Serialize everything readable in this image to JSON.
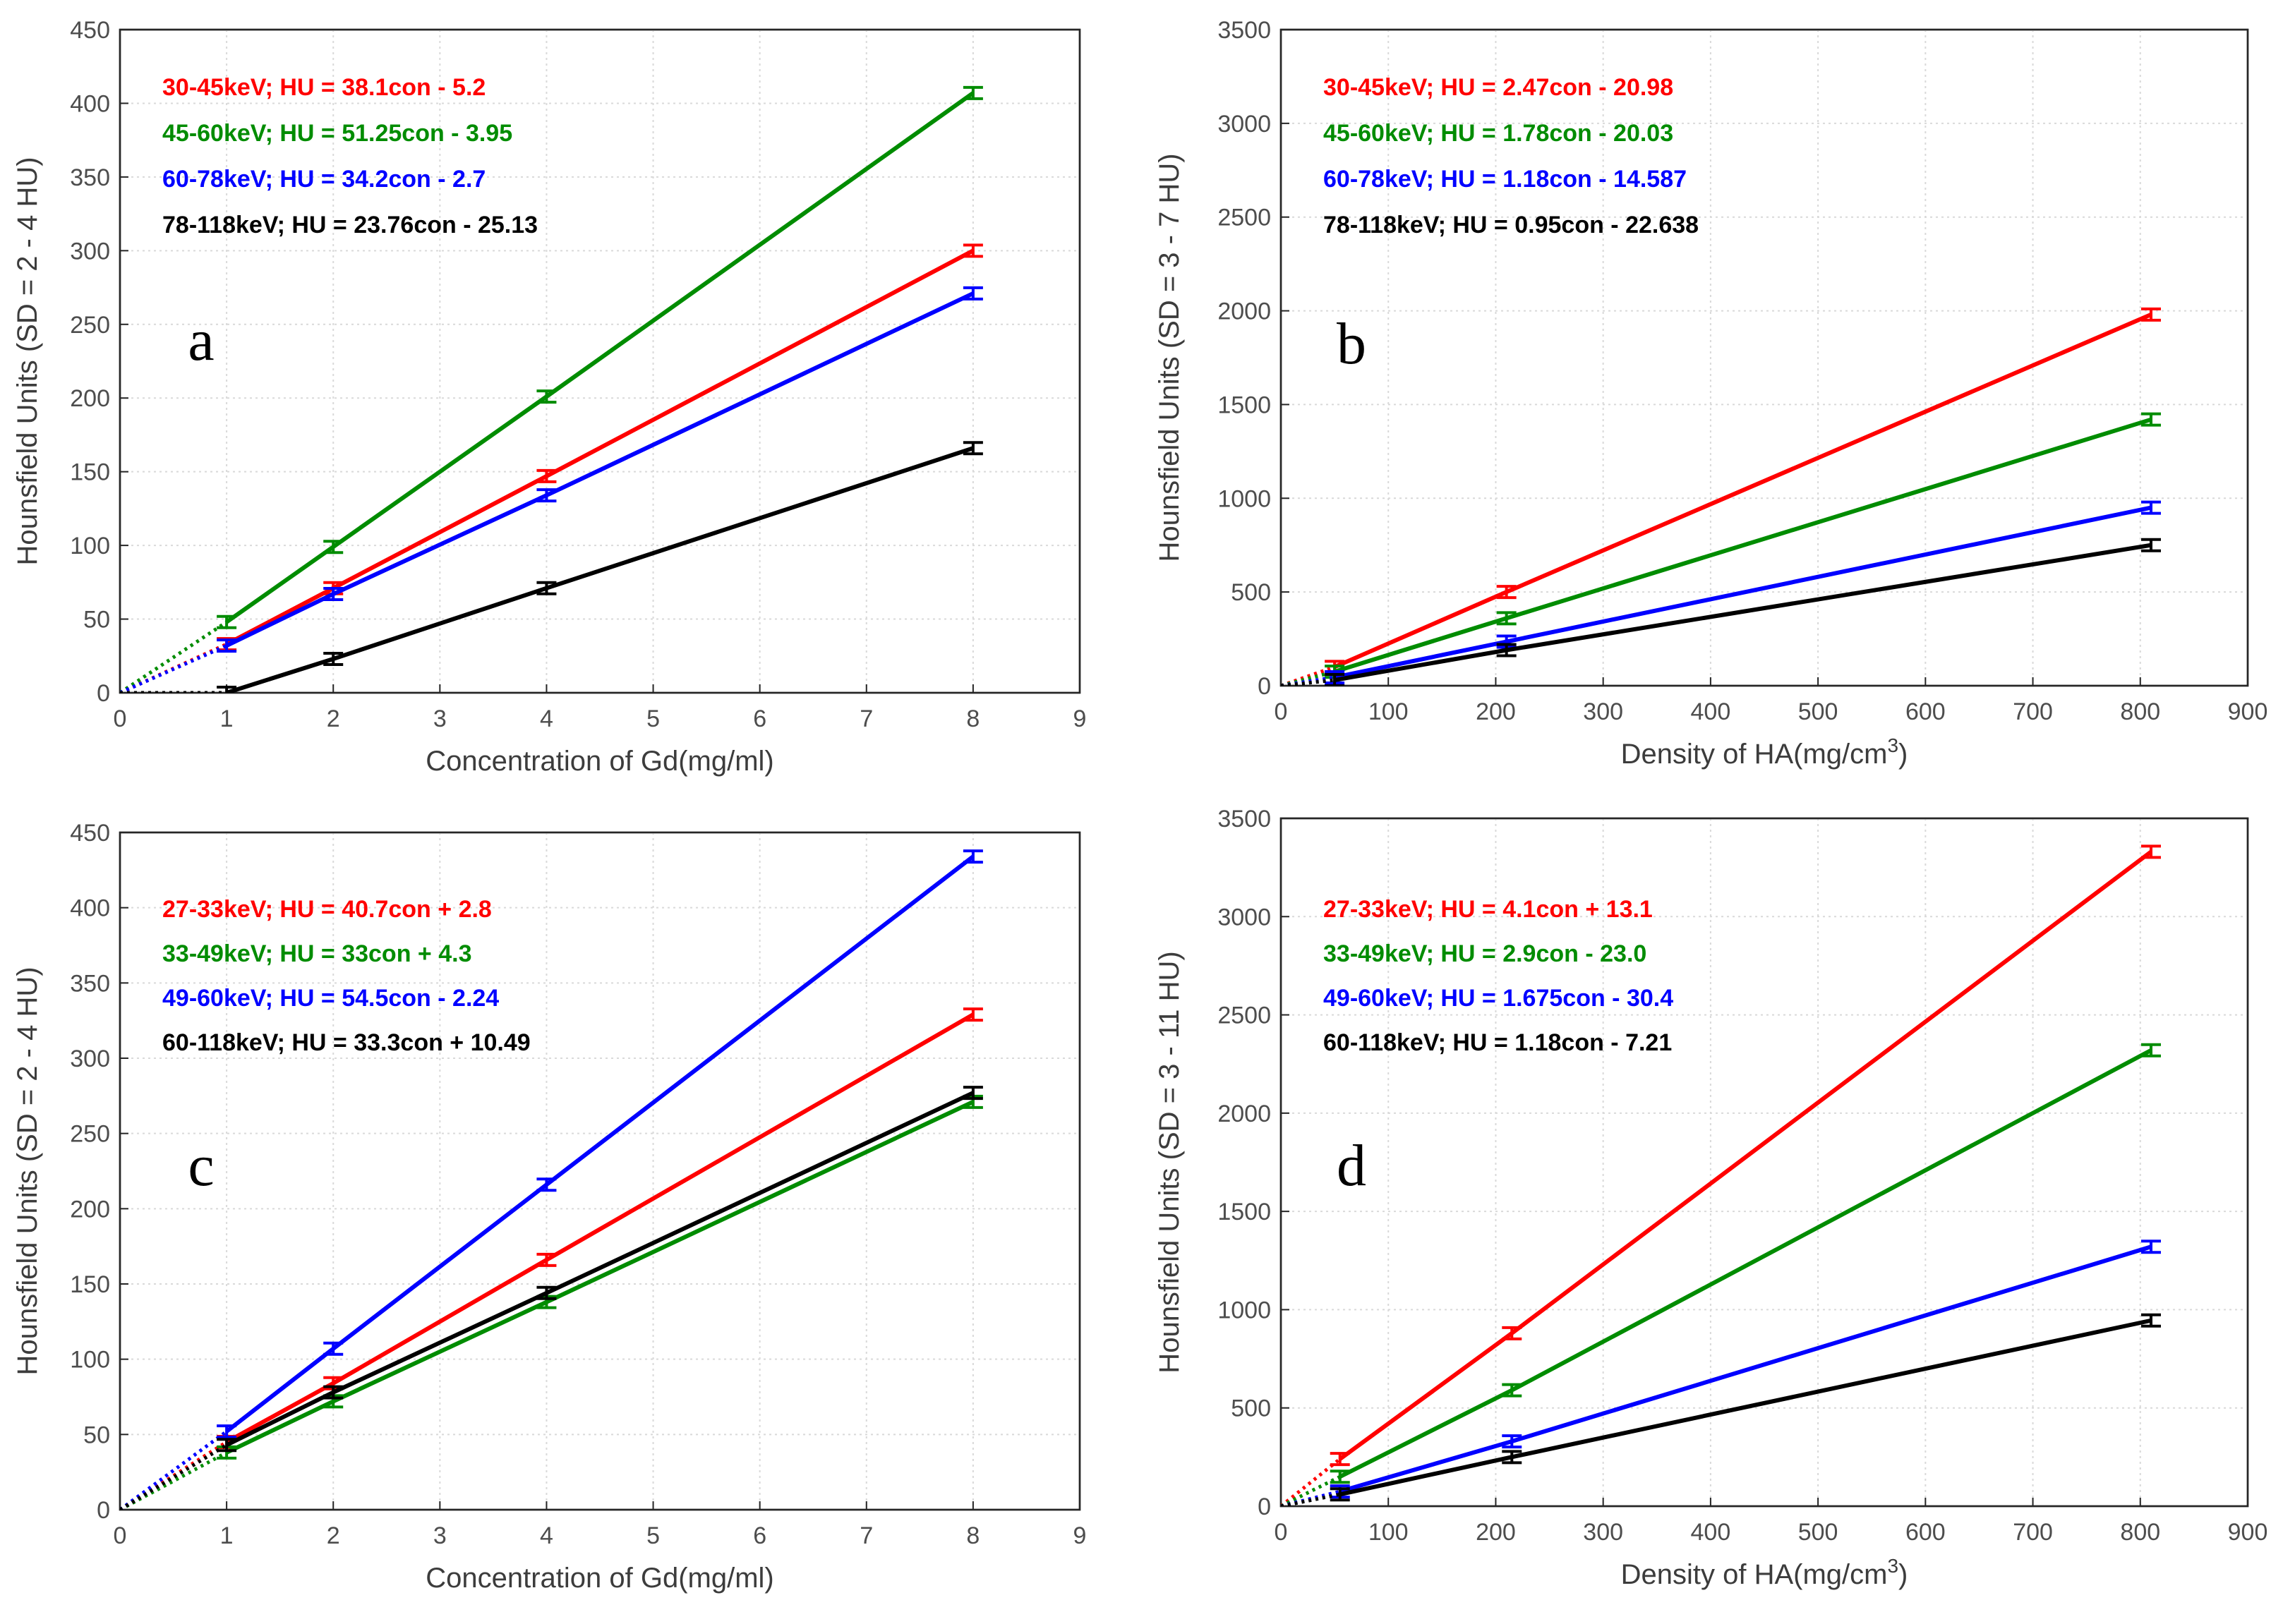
{
  "chart_data": [
    {
      "type": "line",
      "panel_label": "a",
      "xlabel": "Concentration of Gd(mg/ml)",
      "ylabel": "Hounsfield Units (SD = 2 - 4 HU)",
      "xlim": [
        0,
        9
      ],
      "ylim": [
        0,
        450
      ],
      "xticks": [
        "0",
        "1",
        "2",
        "3",
        "4",
        "5",
        "6",
        "7",
        "8",
        "9"
      ],
      "yticks": [
        "0",
        "50",
        "100",
        "150",
        "200",
        "250",
        "300",
        "350",
        "400",
        "450"
      ],
      "x": [
        1,
        2,
        4,
        8
      ],
      "series": [
        {
          "name": "30-45keV",
          "color": "#ff0000",
          "equation": "30-45keV; HU = 38.1con - 5.2",
          "values": [
            33,
            71,
            147,
            300
          ]
        },
        {
          "name": "45-60keV",
          "color": "#008c00",
          "equation": "45-60keV; HU = 51.25con - 3.95",
          "values": [
            48,
            99,
            201,
            407
          ]
        },
        {
          "name": "60-78keV",
          "color": "#0000ff",
          "equation": "60-78keV; HU = 34.2con - 2.7",
          "values": [
            32,
            67,
            134,
            271
          ]
        },
        {
          "name": "78-118keV",
          "color": "#000000",
          "equation": "78-118keV; HU = 23.76con - 25.13",
          "values": [
            0,
            23,
            71,
            166
          ]
        }
      ]
    },
    {
      "type": "line",
      "panel_label": "b",
      "xlabel": "Density of HA(mg/cm",
      "xlabel_sup": "3",
      "xlabel_end": ")",
      "ylabel": "Hounsfield Units (SD = 3 - 7 HU)",
      "xlim": [
        0,
        900
      ],
      "ylim": [
        0,
        3500
      ],
      "xticks": [
        "0",
        "100",
        "200",
        "300",
        "400",
        "500",
        "600",
        "700",
        "800",
        "900"
      ],
      "yticks": [
        "0",
        "500",
        "1000",
        "1500",
        "2000",
        "2500",
        "3000",
        "3500"
      ],
      "x": [
        50,
        210,
        810
      ],
      "series": [
        {
          "name": "30-45keV",
          "color": "#ff0000",
          "equation": "30-45keV; HU = 2.47con - 20.98",
          "values": [
            100,
            500,
            1980
          ]
        },
        {
          "name": "45-60keV",
          "color": "#008c00",
          "equation": "45-60keV; HU = 1.78con - 20.03",
          "values": [
            75,
            360,
            1420
          ]
        },
        {
          "name": "60-78keV",
          "color": "#0000ff",
          "equation": "60-78keV; HU = 1.18con - 14.587",
          "values": [
            45,
            235,
            950
          ]
        },
        {
          "name": "78-118keV",
          "color": "#000000",
          "equation": "78-118keV; HU = 0.95con - 22.638",
          "values": [
            30,
            190,
            750
          ]
        }
      ]
    },
    {
      "type": "line",
      "panel_label": "c",
      "xlabel": "Concentration of Gd(mg/ml)",
      "ylabel": "Hounsfield Units (SD = 2 - 4 HU)",
      "xlim": [
        0,
        9
      ],
      "ylim": [
        0,
        450
      ],
      "xticks": [
        "0",
        "1",
        "2",
        "3",
        "4",
        "5",
        "6",
        "7",
        "8",
        "9"
      ],
      "yticks": [
        "0",
        "50",
        "100",
        "150",
        "200",
        "250",
        "300",
        "350",
        "400",
        "450"
      ],
      "x": [
        1,
        2,
        4,
        8
      ],
      "series": [
        {
          "name": "27-33keV",
          "color": "#ff0000",
          "equation": "27-33keV; HU = 40.7con + 2.8",
          "values": [
            45,
            84,
            166,
            329
          ]
        },
        {
          "name": "33-49keV",
          "color": "#008c00",
          "equation": "33-49keV; HU = 33con + 4.3",
          "values": [
            38,
            72,
            138,
            271
          ]
        },
        {
          "name": "49-60keV",
          "color": "#0000ff",
          "equation": "49-60keV; HU = 54.5con - 2.24",
          "values": [
            52,
            107,
            216,
            434
          ]
        },
        {
          "name": "60-118keV",
          "color": "#000000",
          "equation": "60-118keV; HU = 33.3con + 10.49",
          "values": [
            43,
            78,
            144,
            277
          ]
        }
      ]
    },
    {
      "type": "line",
      "panel_label": "d",
      "xlabel": "Density of HA(mg/cm",
      "xlabel_sup": "3",
      "xlabel_end": ")",
      "ylabel": "Hounsfield Units (SD = 3 - 11 HU)",
      "xlim": [
        0,
        900
      ],
      "ylim": [
        0,
        3500
      ],
      "xticks": [
        "0",
        "100",
        "200",
        "300",
        "400",
        "500",
        "600",
        "700",
        "800",
        "900"
      ],
      "yticks": [
        "0",
        "500",
        "1000",
        "1500",
        "2000",
        "2500",
        "3000",
        "3500"
      ],
      "x": [
        55,
        215,
        810
      ],
      "series": [
        {
          "name": "27-33keV",
          "color": "#ff0000",
          "equation": "27-33keV; HU = 4.1con + 13.1",
          "values": [
            240,
            880,
            3330
          ]
        },
        {
          "name": "33-49keV",
          "color": "#008c00",
          "equation": "33-49keV; HU = 2.9con - 23.0",
          "values": [
            150,
            590,
            2320
          ]
        },
        {
          "name": "49-60keV",
          "color": "#0000ff",
          "equation": "49-60keV; HU = 1.675con - 30.4",
          "values": [
            75,
            330,
            1320
          ]
        },
        {
          "name": "60-118keV",
          "color": "#000000",
          "equation": "60-118keV; HU = 1.18con - 7.21",
          "values": [
            60,
            250,
            945
          ]
        }
      ]
    }
  ]
}
